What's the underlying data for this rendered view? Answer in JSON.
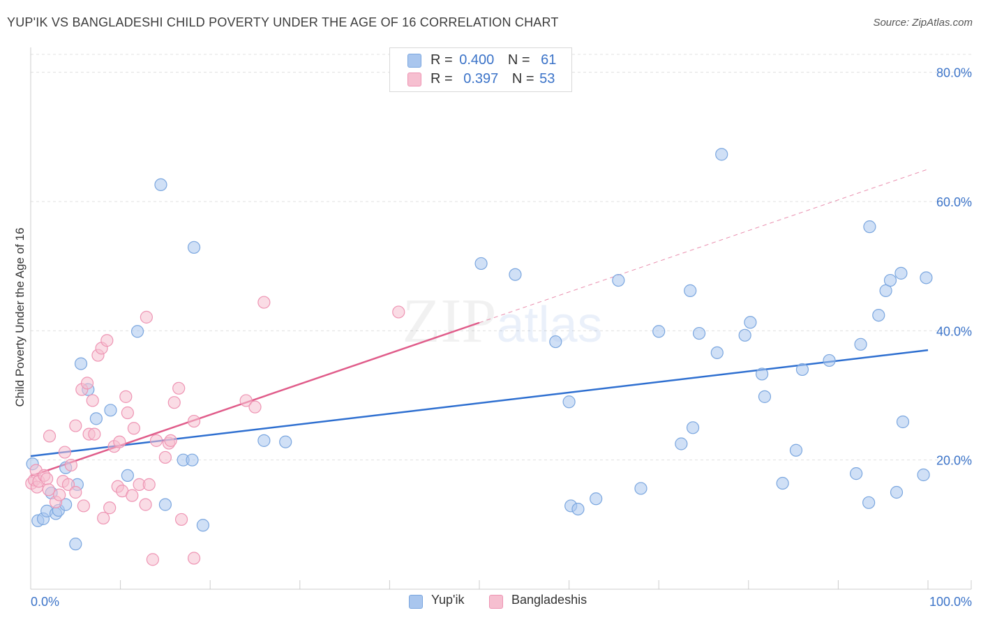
{
  "chart_data": {
    "type": "scatter",
    "title": "YUP'IK VS BANGLADESHI CHILD POVERTY UNDER THE AGE OF 16 CORRELATION CHART",
    "source": "Source: ZipAtlas.com",
    "ylabel": "Child Poverty Under the Age of 16",
    "xlabel": "",
    "xlim": [
      0,
      100
    ],
    "ylim": [
      0,
      84
    ],
    "x_tick_labels": [
      "0.0%",
      "100.0%"
    ],
    "y_ticks": [
      20,
      40,
      60,
      80
    ],
    "y_tick_labels": [
      "20.0%",
      "40.0%",
      "60.0%",
      "80.0%"
    ],
    "watermark": "ZIPatlas",
    "legend": {
      "rows": [
        {
          "r_label": "R =",
          "r_value": "0.400",
          "n_label": "N =",
          "n_value": "61"
        },
        {
          "r_label": "R =",
          "r_value": "0.397",
          "n_label": "N =",
          "n_value": "53"
        }
      ]
    },
    "series": [
      {
        "name": "Yup'ik",
        "color": "#a9c6ee",
        "stroke": "#7aa6df",
        "line_color": "#2e6fd0",
        "trend": {
          "x": [
            0,
            100
          ],
          "y": [
            20.6,
            37.0
          ]
        },
        "points": [
          [
            0.2,
            19.4
          ],
          [
            0.8,
            10.6
          ],
          [
            1.4,
            10.9
          ],
          [
            1.8,
            12.1
          ],
          [
            2.3,
            14.9
          ],
          [
            2.8,
            11.7
          ],
          [
            3.1,
            12.2
          ],
          [
            3.9,
            13.1
          ],
          [
            3.9,
            18.8
          ],
          [
            5.0,
            7.0
          ],
          [
            5.2,
            16.2
          ],
          [
            5.6,
            34.9
          ],
          [
            6.4,
            30.9
          ],
          [
            7.3,
            26.4
          ],
          [
            8.9,
            27.7
          ],
          [
            10.8,
            17.6
          ],
          [
            11.9,
            39.9
          ],
          [
            14.5,
            62.6
          ],
          [
            15.0,
            13.1
          ],
          [
            17.0,
            20.0
          ],
          [
            18.0,
            20.0
          ],
          [
            18.2,
            52.9
          ],
          [
            19.2,
            9.9
          ],
          [
            26.0,
            23.0
          ],
          [
            28.4,
            22.8
          ],
          [
            50.2,
            50.4
          ],
          [
            54.0,
            48.7
          ],
          [
            58.5,
            38.3
          ],
          [
            60.0,
            29.0
          ],
          [
            60.2,
            12.9
          ],
          [
            61.0,
            12.4
          ],
          [
            63.0,
            14.0
          ],
          [
            65.5,
            47.8
          ],
          [
            68.0,
            15.6
          ],
          [
            70.0,
            39.9
          ],
          [
            72.5,
            22.5
          ],
          [
            73.5,
            46.2
          ],
          [
            73.8,
            25.0
          ],
          [
            74.5,
            39.6
          ],
          [
            76.5,
            36.6
          ],
          [
            77.0,
            67.3
          ],
          [
            79.6,
            39.3
          ],
          [
            80.2,
            41.3
          ],
          [
            81.5,
            33.3
          ],
          [
            81.8,
            29.8
          ],
          [
            83.8,
            16.4
          ],
          [
            85.3,
            21.5
          ],
          [
            86.0,
            34.0
          ],
          [
            89.0,
            35.4
          ],
          [
            92.0,
            17.9
          ],
          [
            92.5,
            37.9
          ],
          [
            93.4,
            13.4
          ],
          [
            93.5,
            56.1
          ],
          [
            94.5,
            42.4
          ],
          [
            95.3,
            46.2
          ],
          [
            95.8,
            47.8
          ],
          [
            96.5,
            15.0
          ],
          [
            97.0,
            48.9
          ],
          [
            97.2,
            25.9
          ],
          [
            99.5,
            17.7
          ],
          [
            99.8,
            48.2
          ]
        ]
      },
      {
        "name": "Bangladeshis",
        "color": "#f6bfd0",
        "stroke": "#ee94b3",
        "line_color": "#e05c8a",
        "trend": {
          "x": [
            0,
            100
          ],
          "y": [
            17.5,
            65.0
          ]
        },
        "trend_solid_until": 50,
        "points": [
          [
            0.1,
            16.4
          ],
          [
            0.4,
            16.9
          ],
          [
            0.6,
            18.4
          ],
          [
            0.7,
            15.8
          ],
          [
            0.9,
            16.7
          ],
          [
            1.5,
            17.6
          ],
          [
            1.8,
            17.1
          ],
          [
            2.0,
            15.4
          ],
          [
            2.1,
            23.7
          ],
          [
            2.8,
            13.5
          ],
          [
            3.2,
            14.6
          ],
          [
            3.6,
            16.7
          ],
          [
            3.8,
            21.2
          ],
          [
            4.2,
            16.2
          ],
          [
            4.5,
            19.2
          ],
          [
            5.0,
            15.0
          ],
          [
            5.0,
            25.3
          ],
          [
            5.7,
            30.9
          ],
          [
            5.9,
            12.9
          ],
          [
            6.3,
            31.9
          ],
          [
            6.5,
            24.0
          ],
          [
            6.9,
            29.2
          ],
          [
            7.1,
            24.0
          ],
          [
            7.5,
            36.2
          ],
          [
            7.9,
            37.3
          ],
          [
            8.1,
            11.0
          ],
          [
            8.5,
            38.5
          ],
          [
            8.8,
            12.6
          ],
          [
            9.3,
            22.1
          ],
          [
            9.7,
            15.9
          ],
          [
            9.9,
            22.8
          ],
          [
            10.2,
            15.2
          ],
          [
            10.6,
            29.8
          ],
          [
            10.8,
            27.3
          ],
          [
            11.3,
            14.5
          ],
          [
            11.5,
            24.9
          ],
          [
            12.1,
            16.2
          ],
          [
            12.8,
            13.1
          ],
          [
            12.9,
            42.1
          ],
          [
            13.2,
            16.2
          ],
          [
            13.6,
            4.6
          ],
          [
            14.0,
            23.0
          ],
          [
            15.0,
            20.4
          ],
          [
            15.4,
            22.6
          ],
          [
            15.6,
            23.0
          ],
          [
            16.0,
            28.9
          ],
          [
            16.5,
            31.1
          ],
          [
            16.8,
            10.8
          ],
          [
            18.2,
            4.8
          ],
          [
            18.2,
            26.0
          ],
          [
            24.0,
            29.2
          ],
          [
            25.0,
            28.2
          ],
          [
            26.0,
            44.4
          ],
          [
            41.0,
            42.9
          ]
        ]
      }
    ]
  }
}
